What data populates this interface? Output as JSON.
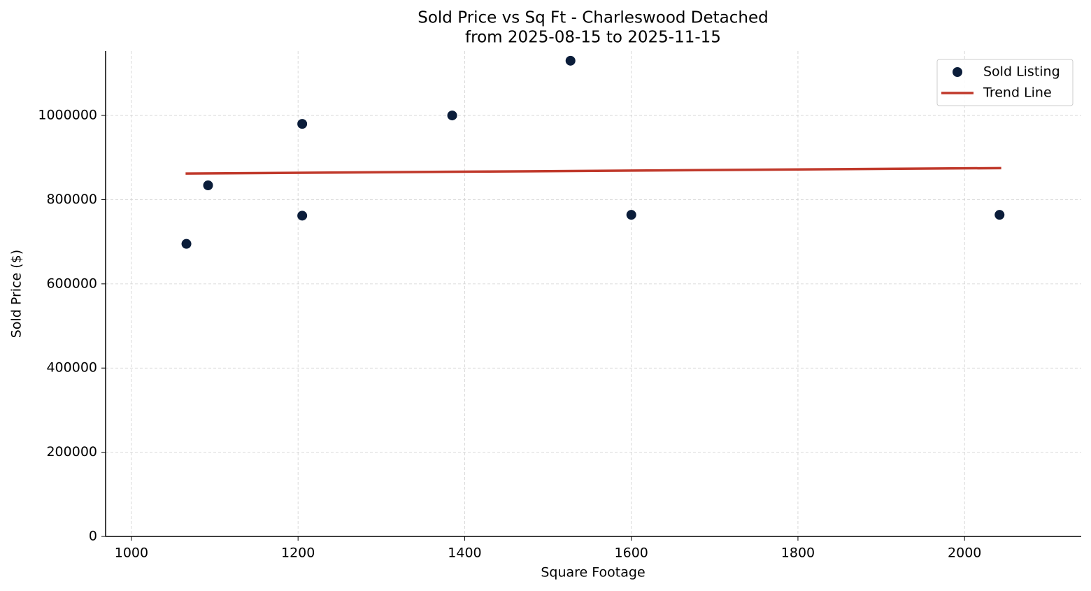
{
  "chart_data": {
    "type": "scatter",
    "title": "Sold Price vs Sq Ft - Charleswood Detached",
    "subtitle": "from 2025-08-15 to 2025-11-15",
    "x_label": "Square Footage",
    "y_label": "Sold Price ($)",
    "xlim": [
      969,
      2140
    ],
    "ylim": [
      0,
      1153000
    ],
    "xticks": [
      1000,
      1200,
      1400,
      1600,
      1800,
      2000
    ],
    "yticks": [
      0,
      200000,
      400000,
      600000,
      800000,
      1000000
    ],
    "grid": true,
    "legend": "upper right",
    "series": [
      {
        "name": "Sold Listing",
        "type": "scatter",
        "color": "#0b1d3a",
        "x": [
          1066,
          1092,
          1205,
          1205,
          1385,
          1527,
          1600,
          2042
        ],
        "values": [
          695000,
          834000,
          980000,
          762000,
          1000000,
          1130000,
          764000,
          764000
        ]
      },
      {
        "name": "Trend Line",
        "type": "line",
        "color": "#c0392b",
        "x": [
          1065,
          2044
        ],
        "values": [
          862000,
          875000
        ]
      }
    ]
  }
}
